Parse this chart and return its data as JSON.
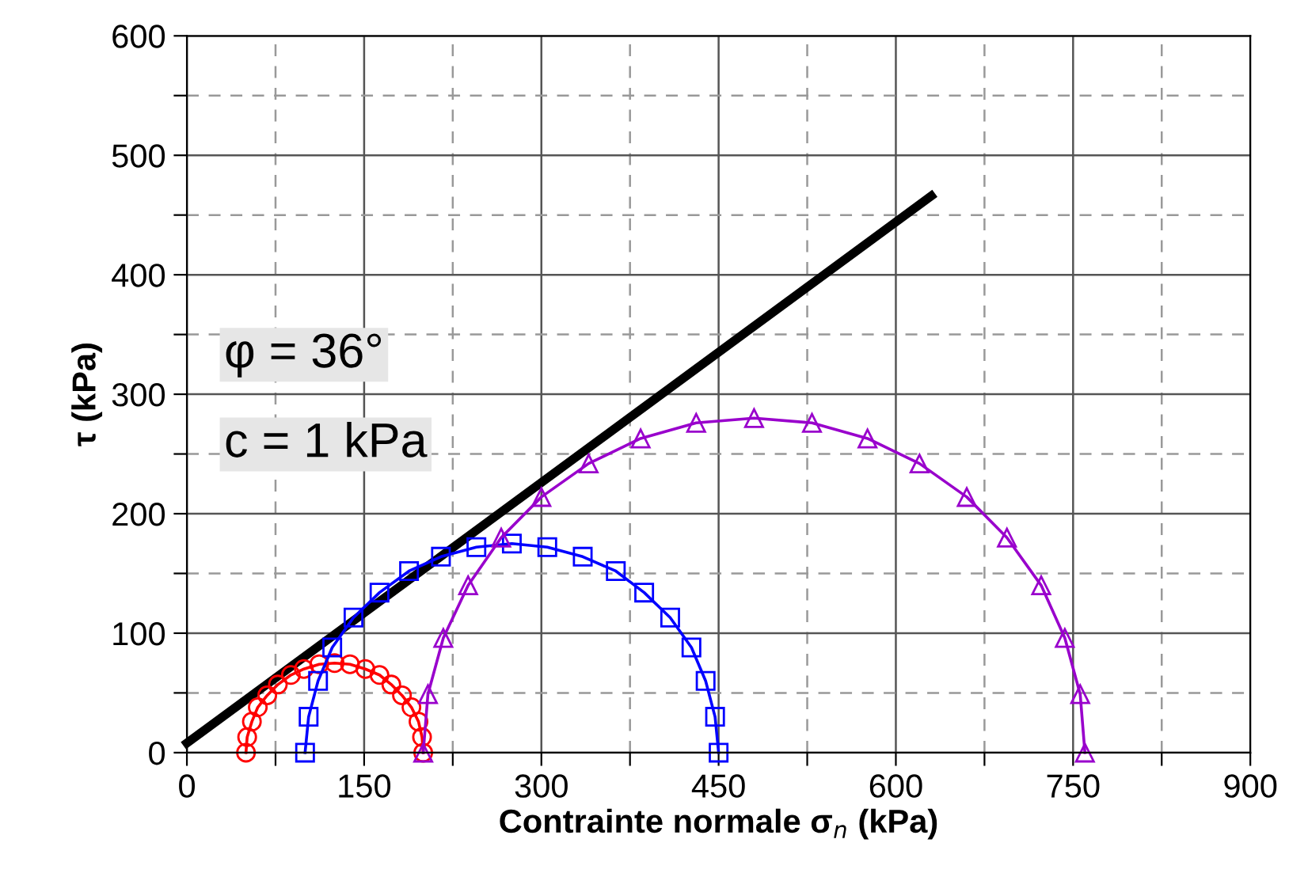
{
  "chart_data": {
    "type": "line",
    "xlabel": "Contrainte normale σ$_{n}$ (kPa)",
    "ylabel": "τ (kPa)",
    "annotations": [
      "φ = 36°",
      "c = 1 kPa"
    ],
    "xlim": [
      0,
      900
    ],
    "ylim": [
      0,
      600
    ],
    "xticks": [
      0,
      {
        "value": 75,
        "label": null
      },
      150,
      {
        "value": 225,
        "label": null
      },
      300,
      {
        "value": 375,
        "label": null
      },
      450,
      {
        "value": 525,
        "label": null
      },
      600,
      {
        "value": 675,
        "label": null
      },
      750,
      {
        "value": 825,
        "label": null
      },
      900
    ],
    "yticks": [
      0,
      {
        "value": 50,
        "label": null
      },
      100,
      {
        "value": 150,
        "label": null
      },
      200,
      {
        "value": 250,
        "label": null
      },
      300,
      {
        "value": 350,
        "label": null
      },
      400,
      {
        "value": 450,
        "label": null
      },
      500,
      {
        "value": 550,
        "label": null
      },
      600
    ],
    "grid": true,
    "series": [
      {
        "color": "#ff0000",
        "marker": "circle",
        "x": [
          50,
          51,
          55,
          60,
          68,
          77,
          88,
          99,
          112,
          125,
          138,
          151,
          163,
          173,
          182,
          190,
          196,
          199,
          200
        ],
        "values": [
          0,
          13,
          26,
          38,
          48,
          57,
          65,
          70,
          74,
          75,
          74,
          70,
          65,
          57,
          48,
          38,
          26,
          13,
          0
        ]
      },
      {
        "color": "#0000ff",
        "marker": "square",
        "x": [
          100,
          103,
          111,
          123,
          141,
          163,
          188,
          215,
          245,
          275,
          305,
          335,
          363,
          387,
          409,
          427,
          439,
          447,
          450
        ],
        "values": [
          0,
          30,
          60,
          88,
          113,
          134,
          152,
          164,
          172,
          175,
          172,
          164,
          152,
          134,
          113,
          88,
          60,
          30,
          0
        ]
      },
      {
        "color": "#9900cc",
        "marker": "triangle",
        "x": [
          200,
          204,
          217,
          238,
          266,
          300,
          340,
          384,
          431,
          480,
          529,
          576,
          620,
          660,
          694,
          723,
          743,
          756,
          760
        ],
        "values": [
          0,
          49,
          96,
          140,
          180,
          214,
          242,
          263,
          276,
          280,
          276,
          263,
          242,
          214,
          180,
          140,
          96,
          49,
          0
        ]
      },
      {
        "color": "#000000",
        "marker": "none",
        "x": [
          0,
          630
        ],
        "values": [
          8,
          466
        ]
      }
    ]
  }
}
